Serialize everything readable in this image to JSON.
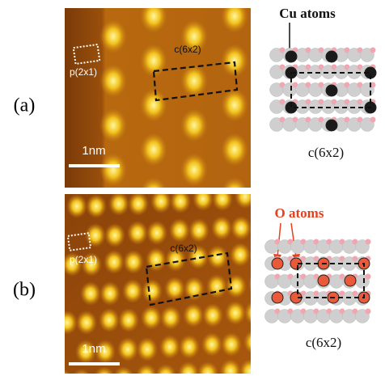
{
  "panels": [
    {
      "label": "(a)",
      "image": {
        "small_cell": "p(2x1)",
        "large_cell": "c(6x2)",
        "scale_bar": "1nm"
      },
      "diagram": {
        "title": "Cu atoms",
        "caption": "c(6x2)"
      }
    },
    {
      "label": "(b)",
      "image": {
        "small_cell": "p(2x1)",
        "large_cell": "c(6x2)",
        "scale_bar": "1nm"
      },
      "diagram": {
        "title": "O atoms",
        "caption": "c(6x2)"
      }
    }
  ]
}
